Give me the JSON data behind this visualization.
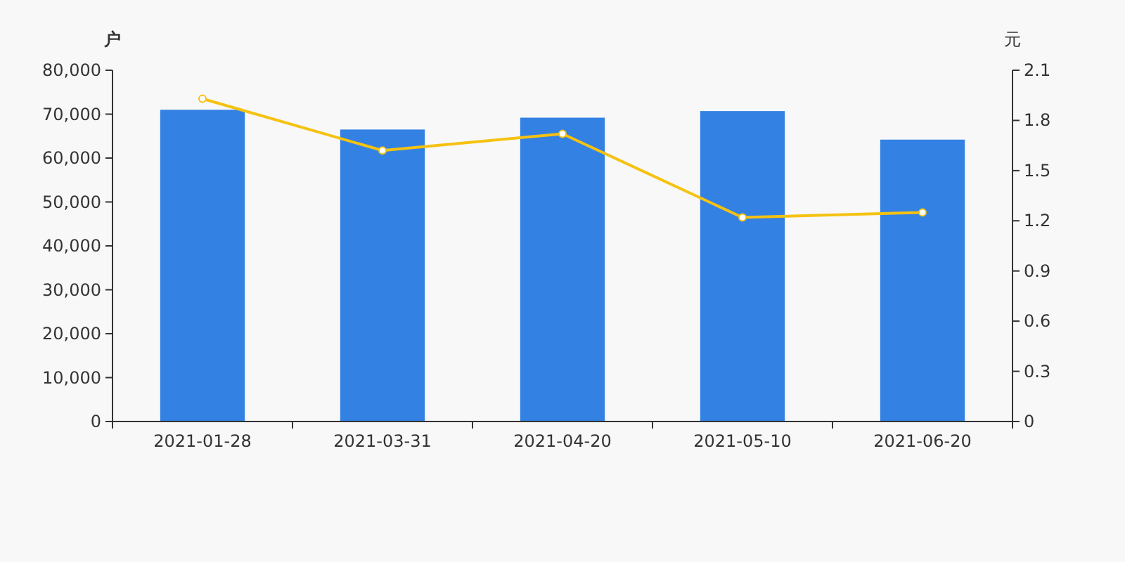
{
  "chart_data": {
    "type": "bar",
    "ylabel": "户",
    "y2label": "元",
    "categories": [
      "2021-01-28",
      "2021-03-31",
      "2021-04-20",
      "2021-05-10",
      "2021-06-20"
    ],
    "series": [
      {
        "color": "#3381e3",
        "values": [
          71000,
          66500,
          69200,
          70700,
          64200
        ]
      },
      {
        "type": "line",
        "axis": "y2",
        "color": "#f5c211",
        "marker": "circle",
        "values": [
          1.93,
          1.62,
          1.72,
          1.22,
          1.25
        ]
      }
    ],
    "ylim": [
      0,
      80000
    ],
    "yticks": [
      0,
      {
        "value": 10000,
        "label": "10,000"
      },
      {
        "value": 20000,
        "label": "20,000"
      },
      {
        "value": 30000,
        "label": "30,000"
      },
      {
        "value": 40000,
        "label": "40,000"
      },
      {
        "value": 50000,
        "label": "50,000"
      },
      {
        "value": 60000,
        "label": "60,000"
      },
      {
        "value": 70000,
        "label": "70,000"
      },
      {
        "value": 80000,
        "label": "80,000"
      }
    ],
    "y2lim": [
      0,
      2.1
    ],
    "y2ticks": [
      0,
      0.3,
      0.6,
      0.9,
      1.2,
      1.5,
      1.8,
      2.1
    ]
  }
}
